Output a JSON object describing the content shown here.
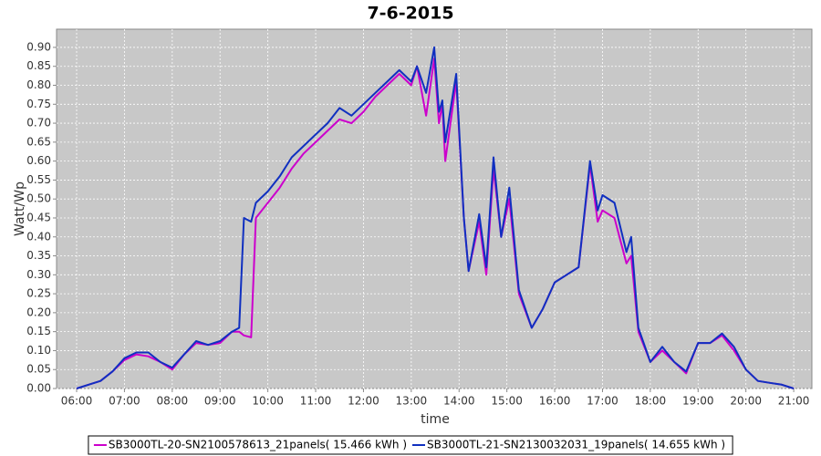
{
  "chart_data": {
    "type": "line",
    "title": "7-6-2015",
    "x_label": "time",
    "y_label": "Watt/Wp",
    "x": [
      6,
      6.25,
      6.5,
      6.75,
      7,
      7.25,
      7.5,
      7.75,
      8,
      8.25,
      8.5,
      8.75,
      9,
      9.25,
      9.4,
      9.5,
      9.65,
      9.75,
      10,
      10.25,
      10.5,
      10.75,
      11,
      11.25,
      11.5,
      11.75,
      12,
      12.25,
      12.5,
      12.75,
      13,
      13.12,
      13.31,
      13.48,
      13.58,
      13.65,
      13.71,
      13.94,
      14.1,
      14.2,
      14.42,
      14.57,
      14.72,
      14.88,
      15.05,
      15.25,
      15.52,
      15.75,
      16,
      16.25,
      16.5,
      16.74,
      16.9,
      17,
      17.25,
      17.5,
      17.6,
      17.75,
      18,
      18.25,
      18.5,
      18.75,
      19,
      19.25,
      19.5,
      19.75,
      20,
      20.25,
      20.5,
      20.75,
      21
    ],
    "series": [
      {
        "name": "SB3000TL-20-SN2100578613_21panels( 15.466 kWh )",
        "color": "#cc00cc",
        "values": [
          0,
          0.01,
          0.02,
          0.045,
          0.075,
          0.09,
          0.085,
          0.07,
          0.05,
          0.09,
          0.12,
          0.115,
          0.12,
          0.15,
          0.15,
          0.14,
          0.135,
          0.45,
          0.49,
          0.53,
          0.58,
          0.62,
          0.65,
          0.68,
          0.71,
          0.7,
          0.73,
          0.77,
          0.8,
          0.83,
          0.8,
          0.85,
          0.72,
          0.87,
          0.7,
          0.75,
          0.6,
          0.81,
          0.45,
          0.31,
          0.44,
          0.3,
          0.58,
          0.4,
          0.5,
          0.25,
          0.16,
          0.21,
          0.28,
          0.3,
          0.32,
          0.59,
          0.44,
          0.47,
          0.45,
          0.33,
          0.35,
          0.15,
          0.07,
          0.1,
          0.07,
          0.04,
          0.12,
          0.12,
          0.14,
          0.1,
          0.05,
          0.02,
          0.015,
          0.01,
          0
        ]
      },
      {
        "name": "SB3000TL-21-SN2130032031_19panels( 14.655 kWh )",
        "color": "#1030c0",
        "values": [
          0,
          0.01,
          0.02,
          0.045,
          0.08,
          0.095,
          0.095,
          0.07,
          0.055,
          0.09,
          0.125,
          0.115,
          0.125,
          0.15,
          0.16,
          0.45,
          0.44,
          0.49,
          0.52,
          0.56,
          0.61,
          0.64,
          0.67,
          0.7,
          0.74,
          0.72,
          0.75,
          0.78,
          0.81,
          0.84,
          0.81,
          0.85,
          0.78,
          0.9,
          0.73,
          0.76,
          0.65,
          0.83,
          0.45,
          0.31,
          0.46,
          0.32,
          0.61,
          0.4,
          0.53,
          0.26,
          0.16,
          0.21,
          0.28,
          0.3,
          0.32,
          0.6,
          0.47,
          0.51,
          0.49,
          0.36,
          0.4,
          0.16,
          0.07,
          0.11,
          0.07,
          0.045,
          0.12,
          0.12,
          0.145,
          0.11,
          0.05,
          0.02,
          0.015,
          0.01,
          0
        ]
      }
    ],
    "xlim": [
      5.58,
      21.38
    ],
    "ylim": [
      0,
      0.948
    ],
    "xticks": [
      {
        "value": 6,
        "label": "06:00"
      },
      {
        "value": 7,
        "label": "07:00"
      },
      {
        "value": 8,
        "label": "08:00"
      },
      {
        "value": 9,
        "label": "09:00"
      },
      {
        "value": 10,
        "label": "10:00"
      },
      {
        "value": 11,
        "label": "11:00"
      },
      {
        "value": 12,
        "label": "12:00"
      },
      {
        "value": 13,
        "label": "13:00"
      },
      {
        "value": 14,
        "label": "14:00"
      },
      {
        "value": 15,
        "label": "15:00"
      },
      {
        "value": 16,
        "label": "16:00"
      },
      {
        "value": 17,
        "label": "17:00"
      },
      {
        "value": 18,
        "label": "18:00"
      },
      {
        "value": 19,
        "label": "19:00"
      },
      {
        "value": 20,
        "label": "20:00"
      },
      {
        "value": 21,
        "label": "21:00"
      }
    ],
    "yticks": [
      {
        "value": 0,
        "label": "0.00"
      },
      {
        "value": 0.05,
        "label": "0.05"
      },
      {
        "value": 0.1,
        "label": "0.10"
      },
      {
        "value": 0.15,
        "label": "0.15"
      },
      {
        "value": 0.2,
        "label": "0.20"
      },
      {
        "value": 0.25,
        "label": "0.25"
      },
      {
        "value": 0.3,
        "label": "0.30"
      },
      {
        "value": 0.35,
        "label": "0.35"
      },
      {
        "value": 0.4,
        "label": "0.40"
      },
      {
        "value": 0.45,
        "label": "0.45"
      },
      {
        "value": 0.5,
        "label": "0.50"
      },
      {
        "value": 0.55,
        "label": "0.55"
      },
      {
        "value": 0.6,
        "label": "0.60"
      },
      {
        "value": 0.65,
        "label": "0.65"
      },
      {
        "value": 0.7,
        "label": "0.70"
      },
      {
        "value": 0.75,
        "label": "0.75"
      },
      {
        "value": 0.8,
        "label": "0.80"
      },
      {
        "value": 0.85,
        "label": "0.85"
      },
      {
        "value": 0.9,
        "label": "0.90"
      }
    ],
    "grid": true,
    "legend": "bottom"
  }
}
